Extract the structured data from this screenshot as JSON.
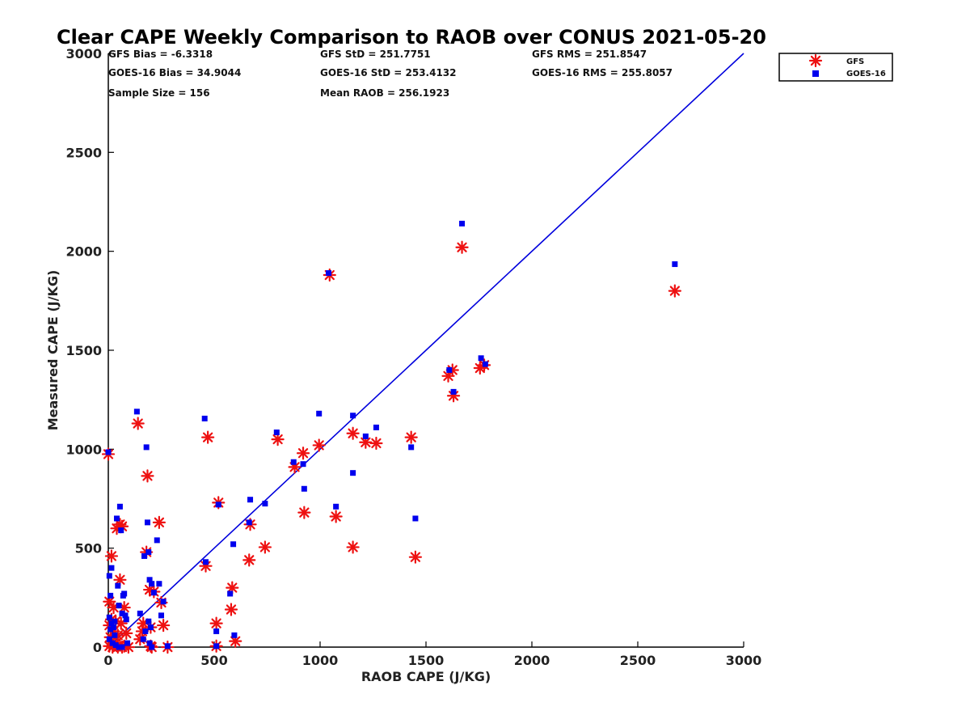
{
  "chart_data": {
    "type": "scatter",
    "title": "Clear CAPE Weekly Comparison to RAOB over CONUS 2021-05-20",
    "xlabel": "RAOB CAPE (J/KG)",
    "ylabel": "Measured CAPE (J/KG)",
    "xlim": [
      0,
      3000
    ],
    "ylim": [
      0,
      3000
    ],
    "x_ticks": [
      "0",
      "500",
      "1000",
      "1500",
      "2000",
      "2500",
      "3000"
    ],
    "y_ticks": [
      "0",
      "500",
      "1000",
      "1500",
      "2000",
      "2500",
      "3000"
    ],
    "grid": false,
    "legend_position": "top-right",
    "reference_line": {
      "from": [
        0,
        0
      ],
      "to": [
        3000,
        3000
      ],
      "color": "#0000dd"
    },
    "stats": [
      [
        "GFS Bias = -6.3318",
        "GFS StD = 251.7751",
        "GFS RMS = 251.8547"
      ],
      [
        "GOES-16 Bias = 34.9044",
        "GOES-16 StD = 253.4132",
        "GOES-16 RMS = 255.8057"
      ],
      [
        "Sample Size = 156",
        "Mean RAOB = 256.1923"
      ]
    ],
    "series": [
      {
        "name": "GFS",
        "marker": "asterisk",
        "color": "#ee1111",
        "points": [
          [
            0,
            975
          ],
          [
            40,
            600
          ],
          [
            55,
            620
          ],
          [
            65,
            610
          ],
          [
            15,
            460
          ],
          [
            55,
            340
          ],
          [
            5,
            230
          ],
          [
            25,
            200
          ],
          [
            75,
            200
          ],
          [
            15,
            140
          ],
          [
            35,
            130
          ],
          [
            5,
            110
          ],
          [
            60,
            120
          ],
          [
            25,
            80
          ],
          [
            45,
            60
          ],
          [
            85,
            70
          ],
          [
            15,
            30
          ],
          [
            35,
            20
          ],
          [
            55,
            10
          ],
          [
            75,
            5
          ],
          [
            5,
            5
          ],
          [
            95,
            0
          ],
          [
            65,
            0
          ],
          [
            20,
            0
          ],
          [
            45,
            0
          ],
          [
            10,
            50
          ],
          [
            140,
            1130
          ],
          [
            185,
            865
          ],
          [
            180,
            480
          ],
          [
            195,
            290
          ],
          [
            215,
            280
          ],
          [
            240,
            630
          ],
          [
            250,
            225
          ],
          [
            260,
            110
          ],
          [
            200,
            100
          ],
          [
            165,
            120
          ],
          [
            150,
            40
          ],
          [
            200,
            5
          ],
          [
            205,
            0
          ],
          [
            280,
            0
          ],
          [
            160,
            80
          ],
          [
            460,
            410
          ],
          [
            470,
            1060
          ],
          [
            520,
            730
          ],
          [
            510,
            120
          ],
          [
            510,
            5
          ],
          [
            580,
            190
          ],
          [
            585,
            300
          ],
          [
            600,
            30
          ],
          [
            665,
            440
          ],
          [
            670,
            620
          ],
          [
            740,
            505
          ],
          [
            800,
            1050
          ],
          [
            880,
            910
          ],
          [
            920,
            980
          ],
          [
            925,
            680
          ],
          [
            995,
            1020
          ],
          [
            1045,
            1880
          ],
          [
            1075,
            660
          ],
          [
            1155,
            505
          ],
          [
            1155,
            1080
          ],
          [
            1215,
            1035
          ],
          [
            1265,
            1030
          ],
          [
            1430,
            1060
          ],
          [
            1450,
            455
          ],
          [
            1605,
            1370
          ],
          [
            1625,
            1400
          ],
          [
            1630,
            1270
          ],
          [
            1670,
            2020
          ],
          [
            1755,
            1410
          ],
          [
            1775,
            1425
          ],
          [
            2675,
            1800
          ]
        ]
      },
      {
        "name": "GOES-16",
        "marker": "square",
        "color": "#0000ee",
        "points": [
          [
            0,
            985
          ],
          [
            5,
            360
          ],
          [
            10,
            260
          ],
          [
            15,
            400
          ],
          [
            5,
            150
          ],
          [
            15,
            120
          ],
          [
            25,
            100
          ],
          [
            30,
            60
          ],
          [
            5,
            40
          ],
          [
            35,
            10
          ],
          [
            45,
            310
          ],
          [
            50,
            210
          ],
          [
            55,
            710
          ],
          [
            60,
            590
          ],
          [
            40,
            650
          ],
          [
            65,
            170
          ],
          [
            70,
            260
          ],
          [
            75,
            270
          ],
          [
            80,
            160
          ],
          [
            85,
            140
          ],
          [
            90,
            20
          ],
          [
            20,
            20
          ],
          [
            50,
            0
          ],
          [
            65,
            0
          ],
          [
            30,
            130
          ],
          [
            10,
            90
          ],
          [
            135,
            1190
          ],
          [
            180,
            1010
          ],
          [
            185,
            630
          ],
          [
            190,
            480
          ],
          [
            195,
            340
          ],
          [
            205,
            320
          ],
          [
            215,
            275
          ],
          [
            230,
            540
          ],
          [
            240,
            320
          ],
          [
            250,
            160
          ],
          [
            260,
            230
          ],
          [
            190,
            130
          ],
          [
            200,
            100
          ],
          [
            170,
            460
          ],
          [
            150,
            170
          ],
          [
            175,
            80
          ],
          [
            165,
            40
          ],
          [
            195,
            20
          ],
          [
            280,
            5
          ],
          [
            205,
            0
          ],
          [
            455,
            1155
          ],
          [
            460,
            430
          ],
          [
            520,
            720
          ],
          [
            510,
            80
          ],
          [
            510,
            5
          ],
          [
            575,
            270
          ],
          [
            590,
            520
          ],
          [
            595,
            60
          ],
          [
            665,
            630
          ],
          [
            670,
            745
          ],
          [
            740,
            725
          ],
          [
            795,
            1085
          ],
          [
            875,
            935
          ],
          [
            920,
            925
          ],
          [
            925,
            800
          ],
          [
            995,
            1180
          ],
          [
            1040,
            1890
          ],
          [
            1075,
            710
          ],
          [
            1155,
            880
          ],
          [
            1155,
            1170
          ],
          [
            1215,
            1065
          ],
          [
            1265,
            1110
          ],
          [
            1430,
            1010
          ],
          [
            1450,
            650
          ],
          [
            1610,
            1400
          ],
          [
            1630,
            1290
          ],
          [
            1670,
            2140
          ],
          [
            1760,
            1460
          ],
          [
            1780,
            1430
          ],
          [
            2675,
            1935
          ]
        ]
      }
    ]
  }
}
